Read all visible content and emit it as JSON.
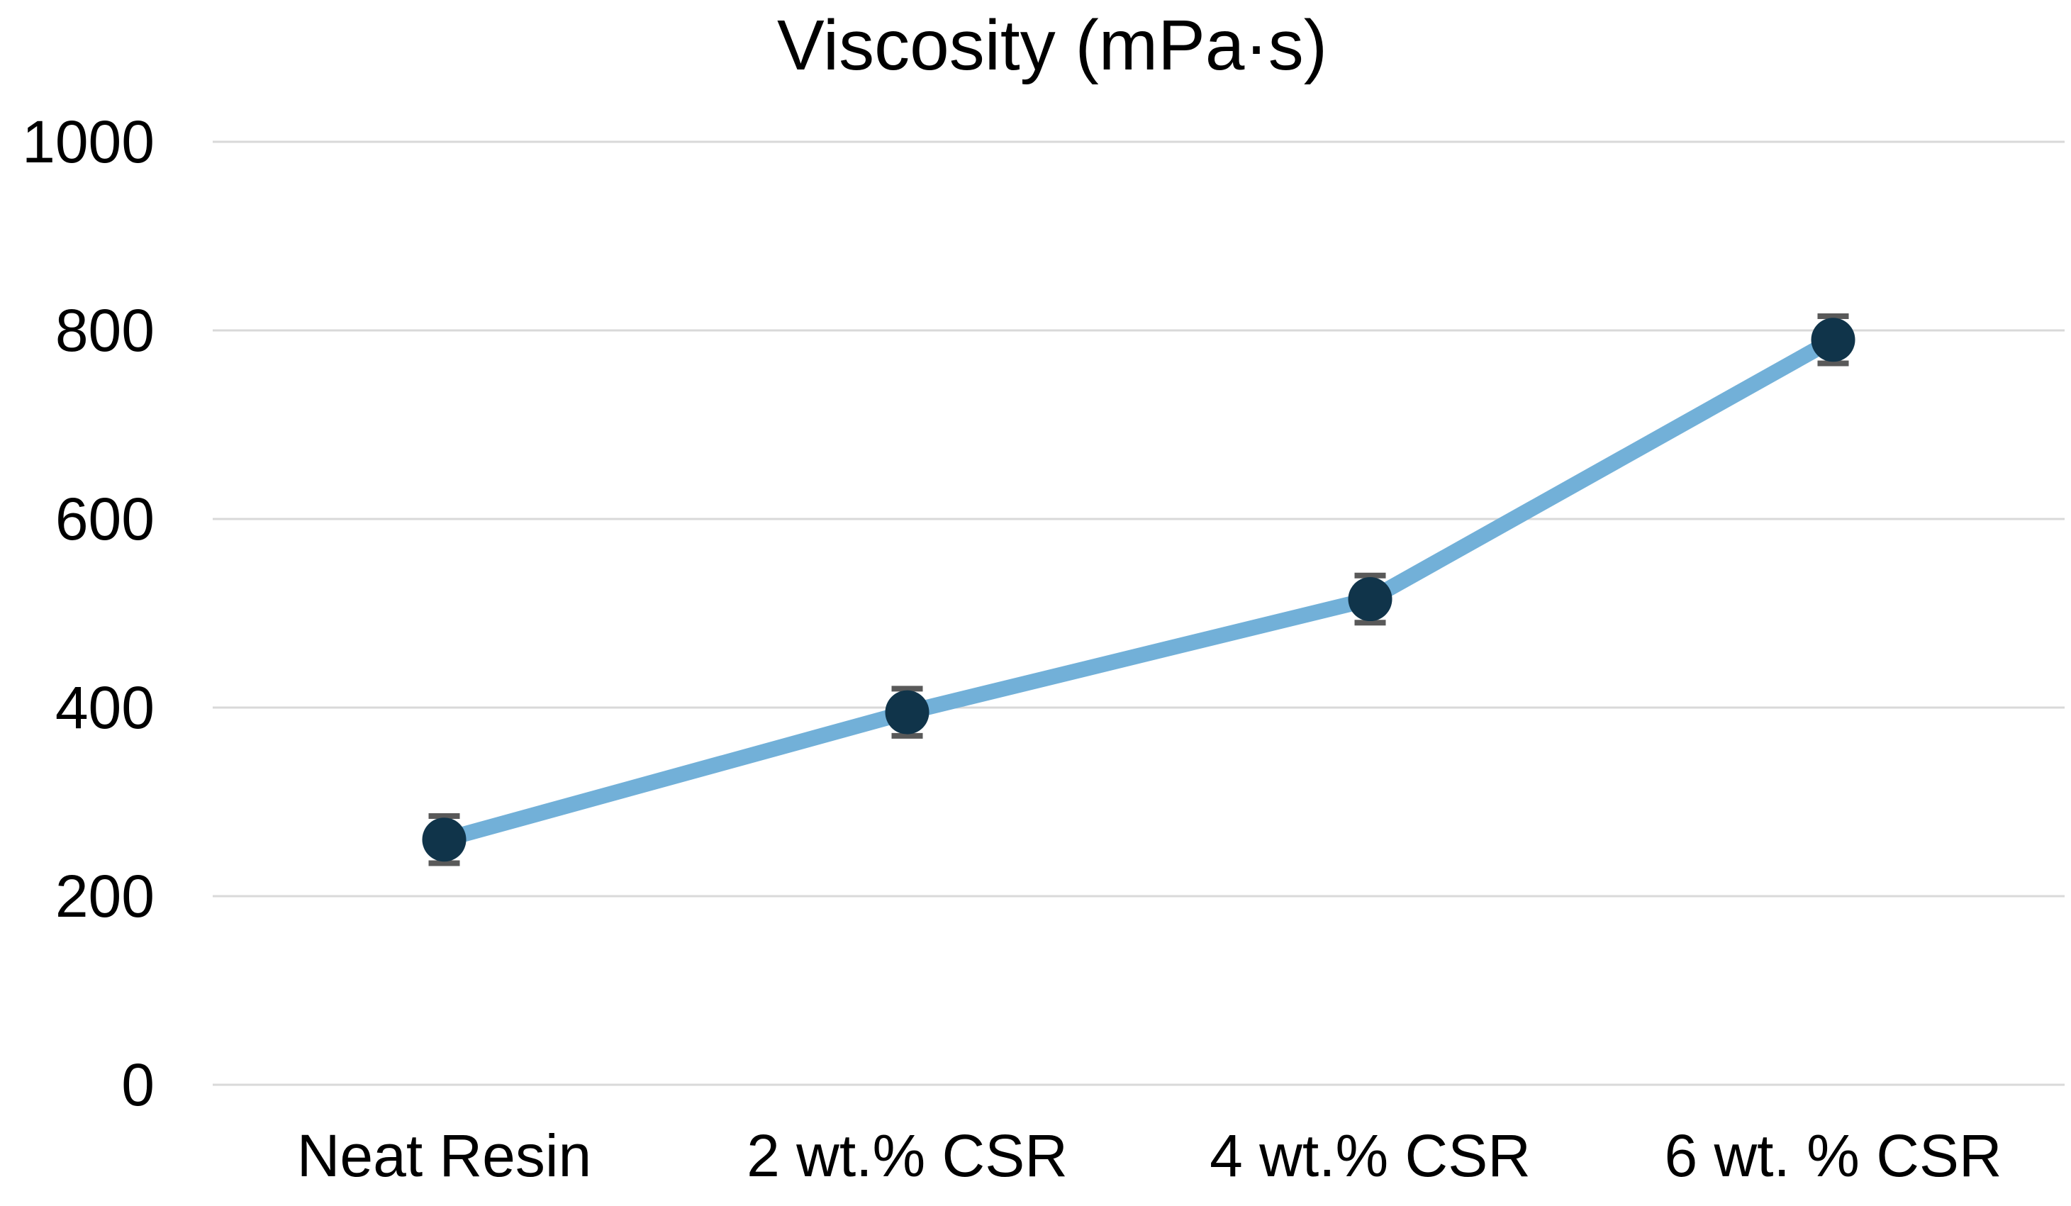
{
  "chart_data": {
    "type": "line",
    "title": "Viscosity (mPa·s)",
    "categories": [
      "Neat Resin",
      "2 wt.% CSR",
      "4 wt.% CSR",
      "6 wt. % CSR"
    ],
    "series": [
      {
        "name": "Viscosity",
        "values": [
          260,
          395,
          515,
          790
        ],
        "error": [
          25,
          25,
          25,
          25
        ]
      }
    ],
    "xlabel": "",
    "ylabel": "",
    "ylim": [
      0,
      1000
    ],
    "yticks": [
      0,
      200,
      400,
      600,
      800,
      1000
    ],
    "grid": "horizontal",
    "legend": "none",
    "colors": {
      "line": "#72b0d8",
      "marker": "#10344a",
      "error_bar": "#595959",
      "gridline": "#d9d9d9",
      "text": "#000000"
    }
  }
}
